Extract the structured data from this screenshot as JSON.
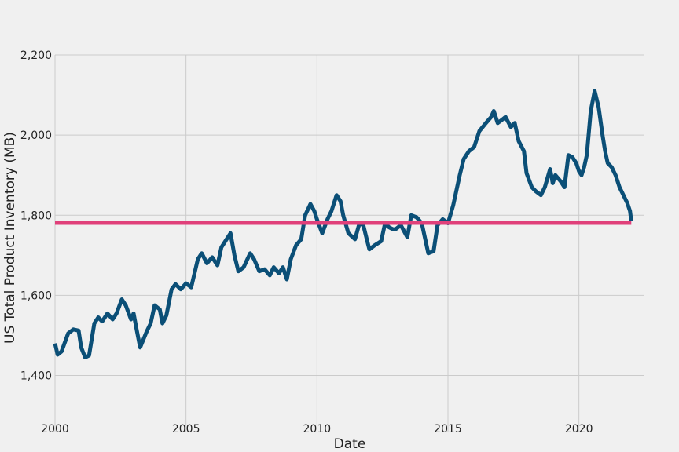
{
  "chart_data": {
    "type": "line",
    "title": "",
    "xlabel": "Date",
    "ylabel": "US Total Product Inventory (MB)",
    "xlim": [
      2000,
      2022.5
    ],
    "ylim": [
      1260,
      2200
    ],
    "grid": true,
    "x_ticks": [
      2000,
      2005,
      2010,
      2015,
      2020
    ],
    "x_tick_labels": [
      "2000",
      "2005",
      "2010",
      "2015",
      "2020"
    ],
    "y_ticks": [
      1400,
      1600,
      1800,
      2000,
      2200
    ],
    "y_tick_labels": [
      "1,400",
      "1,600",
      "1,800",
      "2,000",
      "2,200"
    ],
    "series": [
      {
        "color": "#0b4f77",
        "x": [
          2000.0,
          2000.1,
          2000.25,
          2000.5,
          2000.7,
          2000.9,
          2001.0,
          2001.15,
          2001.3,
          2001.5,
          2001.65,
          2001.8,
          2002.0,
          2002.2,
          2002.35,
          2002.55,
          2002.7,
          2002.9,
          2003.0,
          2003.1,
          2003.25,
          2003.5,
          2003.65,
          2003.8,
          2004.0,
          2004.1,
          2004.25,
          2004.45,
          2004.6,
          2004.8,
          2005.0,
          2005.2,
          2005.45,
          2005.6,
          2005.8,
          2006.0,
          2006.2,
          2006.35,
          2006.55,
          2006.7,
          2006.85,
          2007.0,
          2007.2,
          2007.45,
          2007.6,
          2007.8,
          2008.0,
          2008.2,
          2008.35,
          2008.55,
          2008.7,
          2008.85,
          2009.0,
          2009.2,
          2009.4,
          2009.55,
          2009.75,
          2009.9,
          2010.0,
          2010.2,
          2010.4,
          2010.55,
          2010.75,
          2010.9,
          2011.0,
          2011.2,
          2011.45,
          2011.6,
          2011.75,
          2011.9,
          2012.0,
          2012.2,
          2012.45,
          2012.6,
          2012.75,
          2012.9,
          2013.0,
          2013.2,
          2013.45,
          2013.6,
          2013.8,
          2014.0,
          2014.1,
          2014.25,
          2014.45,
          2014.6,
          2014.8,
          2015.0,
          2015.2,
          2015.45,
          2015.6,
          2015.8,
          2016.0,
          2016.2,
          2016.45,
          2016.65,
          2016.75,
          2016.9,
          2017.0,
          2017.2,
          2017.4,
          2017.55,
          2017.7,
          2017.9,
          2018.0,
          2018.2,
          2018.35,
          2018.55,
          2018.7,
          2018.9,
          2019.0,
          2019.1,
          2019.3,
          2019.45,
          2019.6,
          2019.75,
          2019.9,
          2020.0,
          2020.1,
          2020.2,
          2020.3,
          2020.45,
          2020.6,
          2020.75,
          2020.9,
          2021.0,
          2021.1,
          2021.25,
          2021.4,
          2021.55,
          2021.7,
          2021.85,
          2021.95,
          2022.0
        ],
        "y": [
          1480,
          1452,
          1460,
          1505,
          1515,
          1512,
          1470,
          1445,
          1450,
          1530,
          1545,
          1535,
          1555,
          1540,
          1555,
          1590,
          1575,
          1540,
          1555,
          1520,
          1470,
          1510,
          1530,
          1575,
          1565,
          1530,
          1550,
          1615,
          1628,
          1615,
          1630,
          1620,
          1690,
          1705,
          1680,
          1695,
          1675,
          1720,
          1740,
          1755,
          1700,
          1660,
          1670,
          1705,
          1690,
          1660,
          1665,
          1650,
          1670,
          1655,
          1670,
          1640,
          1690,
          1725,
          1740,
          1800,
          1828,
          1810,
          1790,
          1755,
          1790,
          1810,
          1850,
          1835,
          1800,
          1755,
          1740,
          1775,
          1780,
          1740,
          1715,
          1725,
          1735,
          1780,
          1770,
          1765,
          1765,
          1775,
          1745,
          1800,
          1795,
          1780,
          1750,
          1705,
          1710,
          1775,
          1790,
          1780,
          1825,
          1900,
          1940,
          1960,
          1970,
          2010,
          2030,
          2045,
          2060,
          2030,
          2035,
          2045,
          2020,
          2030,
          1985,
          1960,
          1905,
          1870,
          1860,
          1850,
          1870,
          1915,
          1880,
          1900,
          1885,
          1870,
          1950,
          1945,
          1930,
          1910,
          1900,
          1920,
          1950,
          2060,
          2110,
          2070,
          2000,
          1960,
          1930,
          1920,
          1900,
          1870,
          1850,
          1830,
          1810,
          1785
        ]
      },
      {
        "color": "#e0407a",
        "x": [
          2000.0,
          2022.0
        ],
        "y": [
          1781,
          1781
        ]
      }
    ]
  }
}
